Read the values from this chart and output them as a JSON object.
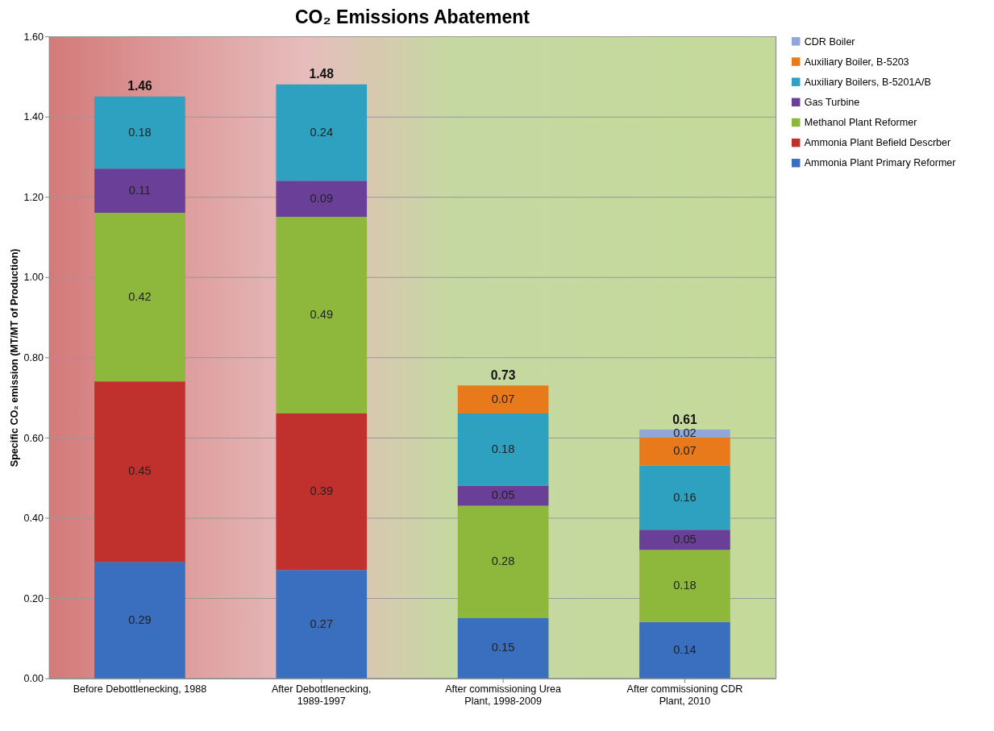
{
  "chart_data": {
    "type": "bar",
    "title": "CO₂ Emissions Abatement",
    "ylabel": "Specific CO₂ emission (MT/MT of Production)",
    "categories": [
      "Before Debottlenecking, 1988",
      "After Debottlenecking, 1989-1997",
      "After commissioning Urea Plant, 1998-2009",
      "After commissioning CDR Plant, 2010"
    ],
    "stacked": true,
    "series": [
      {
        "name": "Ammonia Plant  Primary Reformer",
        "color": "#3a6fc0",
        "values": [
          0.29,
          0.27,
          0.15,
          0.14
        ]
      },
      {
        "name": "Ammonia Plant  Befield Descrber",
        "color": "#c0302c",
        "values": [
          0.45,
          0.39,
          null,
          null
        ]
      },
      {
        "name": "Methanol Plant Reformer",
        "color": "#8db83c",
        "values": [
          0.42,
          0.49,
          0.28,
          0.18
        ]
      },
      {
        "name": "Gas Turbine",
        "color": "#6a3f98",
        "values": [
          0.11,
          0.09,
          0.05,
          0.05
        ]
      },
      {
        "name": "Auxiliary Boilers, B-5201A/B",
        "color": "#2ea0c0",
        "values": [
          0.18,
          0.24,
          0.18,
          0.16
        ]
      },
      {
        "name": "Auxiliary Boiler, B-5203",
        "color": "#e87a1c",
        "values": [
          null,
          null,
          0.07,
          0.07
        ]
      },
      {
        "name": "CDR Boiler",
        "color": "#8fa8d8",
        "values": [
          null,
          null,
          null,
          0.02
        ]
      }
    ],
    "totals": [
      "1.46",
      "1.48",
      "0.73",
      "0.61"
    ],
    "data_labels": true,
    "ylim": [
      0,
      1.6
    ],
    "yticks": [
      {
        "value": 0,
        "label": "0.00"
      },
      {
        "value": 0.2,
        "label": "0.20"
      },
      {
        "value": 0.4,
        "label": "0.40"
      },
      {
        "value": 0.6,
        "label": "0.60"
      },
      {
        "value": 0.8,
        "label": "0.80"
      },
      {
        "value": 1.0,
        "label": "1.00"
      },
      {
        "value": 1.2,
        "label": "1.20"
      },
      {
        "value": 1.4,
        "label": "1.40"
      },
      {
        "value": 1.6,
        "label": "1.60"
      }
    ],
    "grid": "y",
    "legend": "right"
  }
}
